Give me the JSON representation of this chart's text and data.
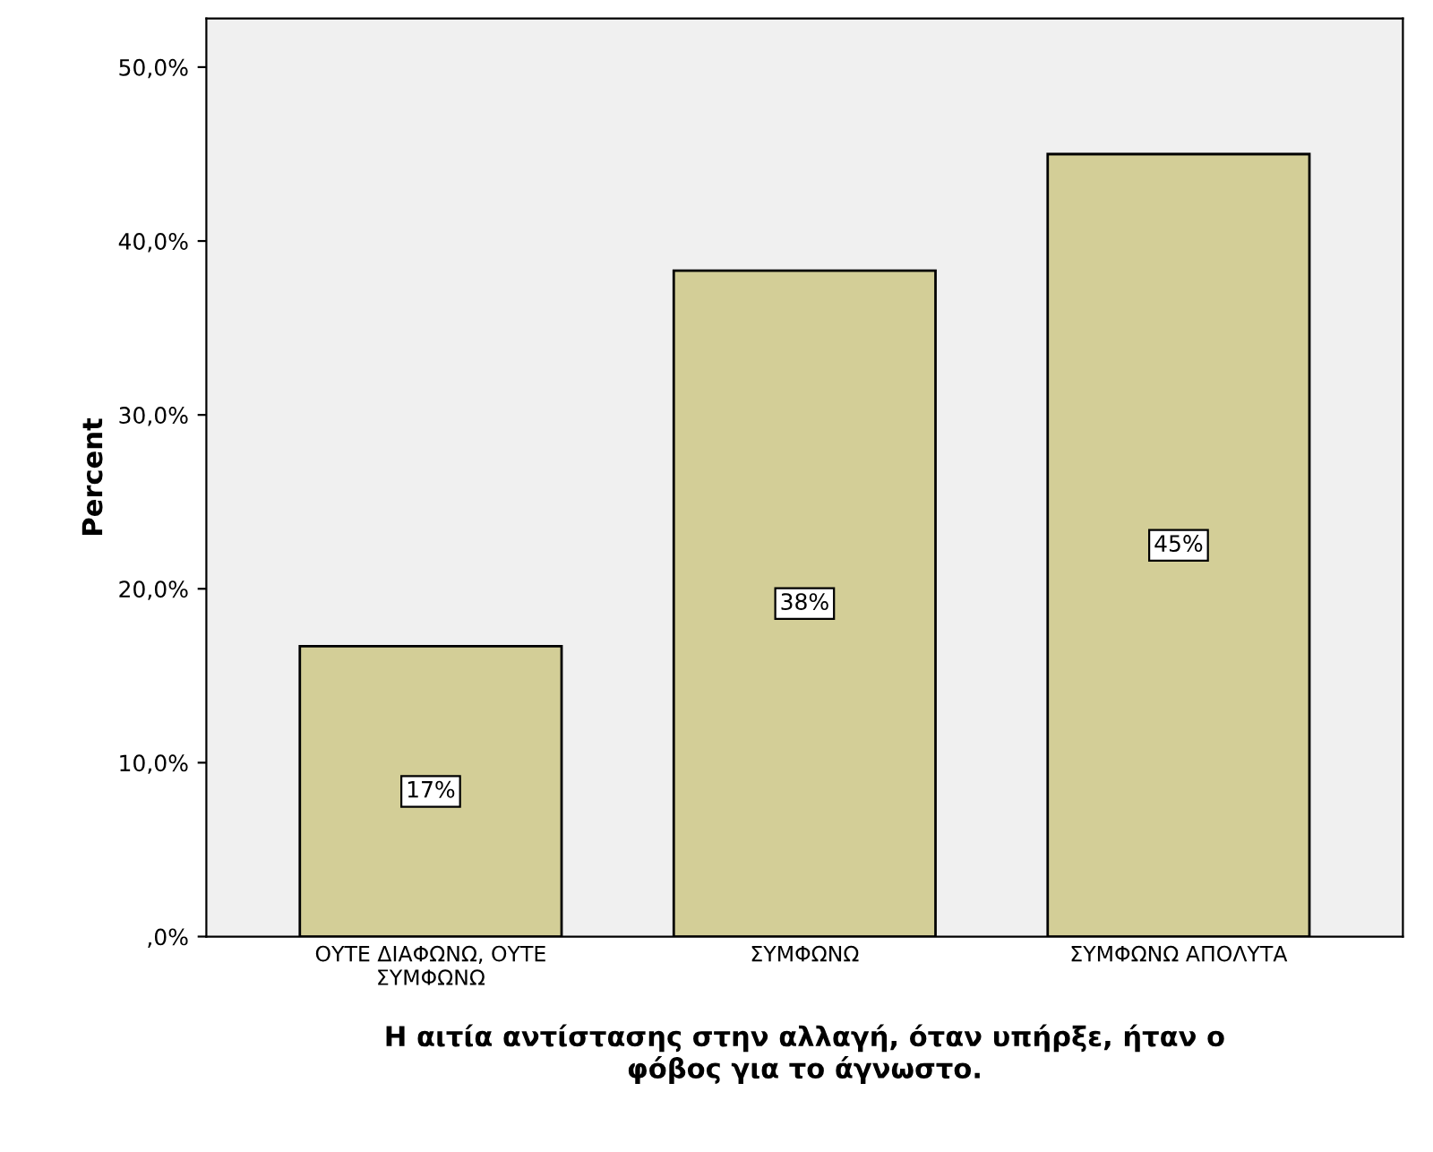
{
  "chart_data": {
    "type": "bar",
    "categories": [
      "ΟΥΤΕ ΔΙΑΦΩΝΩ, ΟΥΤΕ\nΣΥΜΦΩΝΩ",
      "ΣΥΜΦΩΝΩ",
      "ΣΥΜΦΩΝΩ ΑΠΟΛΥΤΑ"
    ],
    "values": [
      16.7,
      38.3,
      45.0
    ],
    "value_labels": [
      "17%",
      "38%",
      "45%"
    ],
    "color": "#d3ce97",
    "xlabel": "Η αιτία αντίστασης στην αλλαγή, όταν υπήρξε, ήταν ο\nφόβος για το άγνωστο.",
    "ylabel": "Percent",
    "ylim": [
      0,
      52.8
    ],
    "yticks": [
      {
        "value": 0,
        "label": ",0%"
      },
      {
        "value": 10,
        "label": "10,0%"
      },
      {
        "value": 20,
        "label": "20,0%"
      },
      {
        "value": 30,
        "label": "30,0%"
      },
      {
        "value": 40,
        "label": "40,0%"
      },
      {
        "value": 50,
        "label": "50,0%"
      }
    ],
    "grid": false
  }
}
